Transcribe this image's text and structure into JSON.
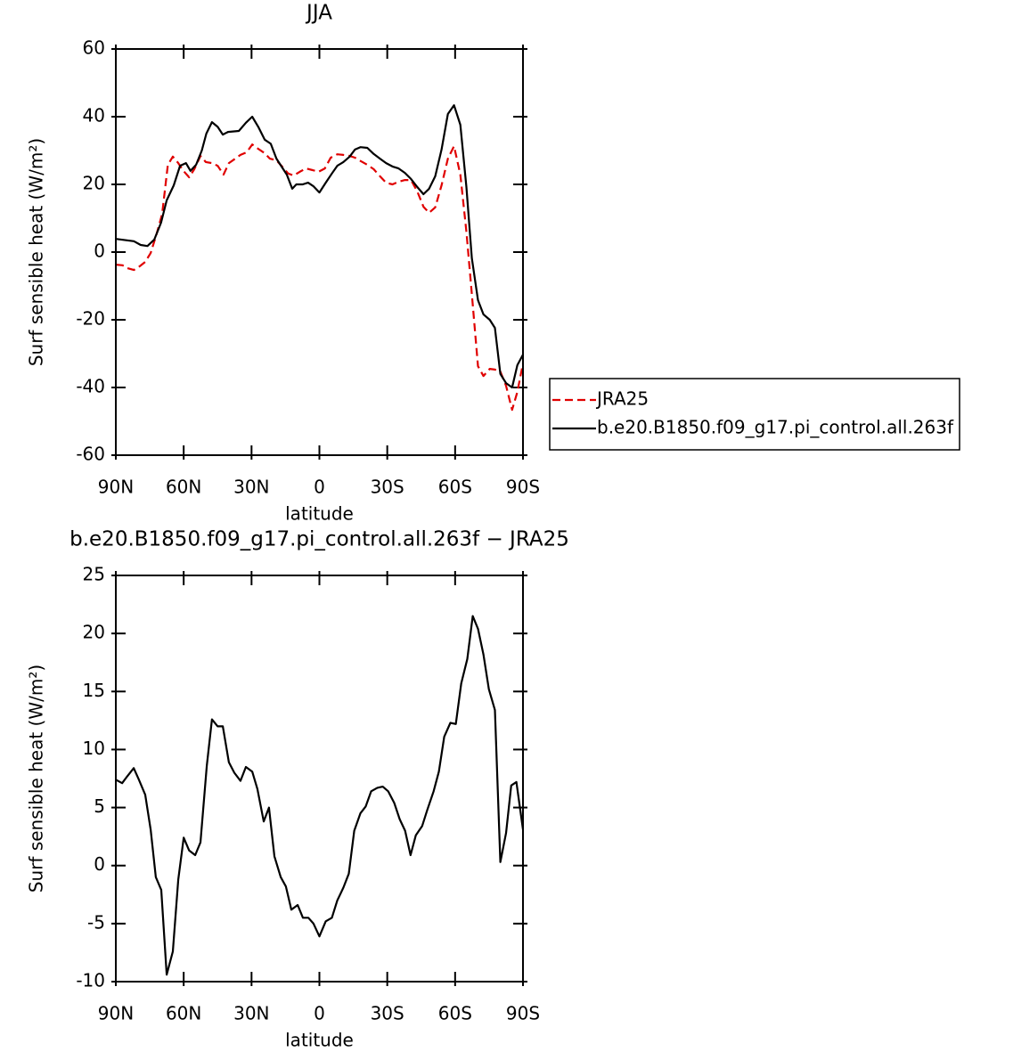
{
  "chart_data": [
    {
      "type": "line",
      "title": "JJA",
      "ylabel": "Surf sensible heat (W/m²)",
      "xlabel": "latitude",
      "xlim": [
        90,
        -90
      ],
      "ylim": [
        -60,
        60
      ],
      "xticks": [
        {
          "value": 90,
          "label": "90N"
        },
        {
          "value": 60,
          "label": "60N"
        },
        {
          "value": 30,
          "label": "30N"
        },
        0,
        {
          "value": -30,
          "label": "30S"
        },
        {
          "value": -60,
          "label": "60S"
        },
        {
          "value": -90,
          "label": "90S"
        }
      ],
      "yticks": [
        -60,
        -40,
        -20,
        0,
        20,
        40,
        60
      ],
      "legend": "right",
      "series": [
        {
          "name": "JRA25",
          "color": "#e00000",
          "dash": true,
          "x": [
            90,
            87,
            85,
            82,
            79.5,
            77,
            74.6,
            72,
            69.5,
            67,
            64.8,
            62.4,
            60,
            57.6,
            55.3,
            52.6,
            50.2,
            47.5,
            45,
            42.4,
            40,
            37.2,
            34.9,
            32.1,
            29.7,
            27,
            24.2,
            21.9,
            19,
            16.5,
            13.8,
            11.4,
            8.7,
            6,
            3,
            0.4,
            -2.4,
            -5,
            -7.9,
            -10.6,
            -13.4,
            -15.7,
            -18.5,
            -21.2,
            -24,
            -26.8,
            -29.5,
            -32.3,
            -35,
            -37.8,
            -40.5,
            -43.3,
            -46,
            -48.5,
            -51.2,
            -54,
            -56.8,
            -59.5,
            -62.3,
            -65,
            -67.4,
            -70.1,
            -72.5,
            -75.3,
            -77.6,
            -80,
            -82.5,
            -85.2,
            -87.5,
            -90
          ],
          "values": [
            -3.7,
            -3.9,
            -4.7,
            -5.3,
            -4.2,
            -2.9,
            -0.3,
            5.3,
            11.3,
            25.8,
            28.2,
            26.3,
            23.9,
            22.1,
            24.5,
            28.4,
            26.6,
            26.3,
            25.5,
            22.9,
            26.3,
            27.6,
            28.7,
            29.5,
            31.8,
            30.5,
            29.2,
            27.6,
            27.1,
            25.3,
            23.2,
            22.6,
            23.7,
            24.7,
            24.2,
            23.7,
            24.7,
            27.9,
            28.9,
            28.7,
            28.4,
            27.9,
            26.8,
            25.8,
            24.5,
            22.4,
            20.5,
            20,
            20.8,
            21.3,
            21.3,
            17.9,
            13.4,
            11.6,
            13.2,
            19.7,
            27.6,
            31.3,
            22.9,
            6,
            -12.4,
            -33.7,
            -36.6,
            -34.5,
            -34.7,
            -35.3,
            -39.5,
            -46.6,
            -41.3,
            -32.9
          ]
        },
        {
          "name": "b.e20.B1850.f09_g17.pi_control.all.263f",
          "color": "#000000",
          "dash": false,
          "x": [
            90,
            82,
            79,
            76,
            73,
            70,
            67.5,
            64.4,
            61.6,
            59,
            57,
            54.5,
            52,
            50,
            47.5,
            45,
            42.7,
            40.4,
            35.6,
            32.5,
            29.7,
            27,
            24.2,
            21.5,
            19,
            16,
            14.4,
            12,
            10.2,
            7.4,
            5,
            2.7,
            0,
            -2.8,
            -5.5,
            -7.9,
            -10.6,
            -13.4,
            -15.7,
            -18.1,
            -21.2,
            -24,
            -26.8,
            -29.5,
            -32.3,
            -35,
            -37.8,
            -40.5,
            -43.3,
            -46,
            -48.5,
            -51.2,
            -54,
            -56.8,
            -59.5,
            -62.3,
            -65,
            -67.4,
            -70.1,
            -72.5,
            -75.3,
            -77.6,
            -80,
            -82.5,
            -85.2,
            -87.5,
            -90
          ],
          "values": [
            3.9,
            3.2,
            2.1,
            1.8,
            3.7,
            8.7,
            15.3,
            19.7,
            25.5,
            26.3,
            24,
            25.8,
            30,
            35,
            38.4,
            37,
            34.7,
            35.5,
            35.8,
            38.2,
            40,
            37,
            33.2,
            32,
            27.6,
            24.5,
            22.9,
            18.7,
            20,
            20,
            20.5,
            19.5,
            17.6,
            20.5,
            23.2,
            25.5,
            26.6,
            28.2,
            30.3,
            31,
            30.8,
            29,
            27.6,
            26.3,
            25.3,
            24.7,
            23.4,
            21.6,
            19.2,
            17.1,
            18.7,
            22.4,
            30.3,
            40.8,
            43.4,
            37.6,
            19.2,
            -1.8,
            -14.2,
            -18.4,
            -20,
            -22.4,
            -36,
            -38.7,
            -40,
            -33.4,
            -30.3
          ]
        }
      ]
    },
    {
      "type": "line",
      "title": "b.e20.B1850.f09_g17.pi_control.all.263f − JRA25",
      "ylabel": "Surf sensible heat (W/m²)",
      "xlabel": "latitude",
      "xlim": [
        90,
        -90
      ],
      "ylim": [
        -10,
        25
      ],
      "xticks": [
        {
          "value": 90,
          "label": "90N"
        },
        {
          "value": 60,
          "label": "60N"
        },
        {
          "value": 30,
          "label": "30N"
        },
        0,
        {
          "value": -30,
          "label": "30S"
        },
        {
          "value": -60,
          "label": "60S"
        },
        {
          "value": -90,
          "label": "90S"
        }
      ],
      "yticks": [
        -10,
        -5,
        0,
        5,
        10,
        15,
        20,
        25
      ],
      "color": "#000000",
      "x": [
        90,
        87.2,
        84.9,
        82.1,
        79.8,
        77,
        74.6,
        72.3,
        69.9,
        67.5,
        64.8,
        62.4,
        60,
        57.6,
        54.9,
        52.6,
        49.8,
        47.5,
        45,
        42.7,
        40,
        37.6,
        34.9,
        32.5,
        29.7,
        27.4,
        24.6,
        22.3,
        19.9,
        17.1,
        14.8,
        12.4,
        9.6,
        7.3,
        4.9,
        2.6,
        0,
        -2.8,
        -5.5,
        -7.9,
        -10.6,
        -13,
        -15.4,
        -18.1,
        -20.5,
        -22.9,
        -25.6,
        -28,
        -30.4,
        -33.1,
        -35.5,
        -37.9,
        -40.3,
        -42.6,
        -45.4,
        -47.7,
        -50.5,
        -52.8,
        -55.2,
        -57.9,
        -60.3,
        -62.7,
        -65.4,
        -67.8,
        -70.1,
        -72.5,
        -74.9,
        -77.6,
        -80,
        -82.5,
        -84.8,
        -87.1,
        -90
      ],
      "values": [
        7.4,
        7.1,
        7.7,
        8.4,
        7.4,
        6.1,
        3.1,
        -1,
        -2.1,
        -9.4,
        -7.4,
        -1.2,
        2.4,
        1.3,
        0.9,
        2,
        8.6,
        12.6,
        12,
        12,
        8.9,
        8,
        7.3,
        8.5,
        8.1,
        6.6,
        3.8,
        5,
        0.8,
        -1,
        -1.8,
        -3.8,
        -3.4,
        -4.5,
        -4.5,
        -5,
        -6.1,
        -4.8,
        -4.5,
        -3,
        -1.9,
        -0.7,
        3,
        4.5,
        5.1,
        6.4,
        6.7,
        6.8,
        6.4,
        5.4,
        4,
        3,
        0.9,
        2.6,
        3.4,
        4.8,
        6.4,
        8.1,
        11.1,
        12.3,
        12.2,
        15.7,
        17.8,
        21.5,
        20.4,
        18.2,
        15.2,
        13.4,
        0.3,
        2.8,
        6.9,
        7.2,
        3.1
      ]
    }
  ]
}
